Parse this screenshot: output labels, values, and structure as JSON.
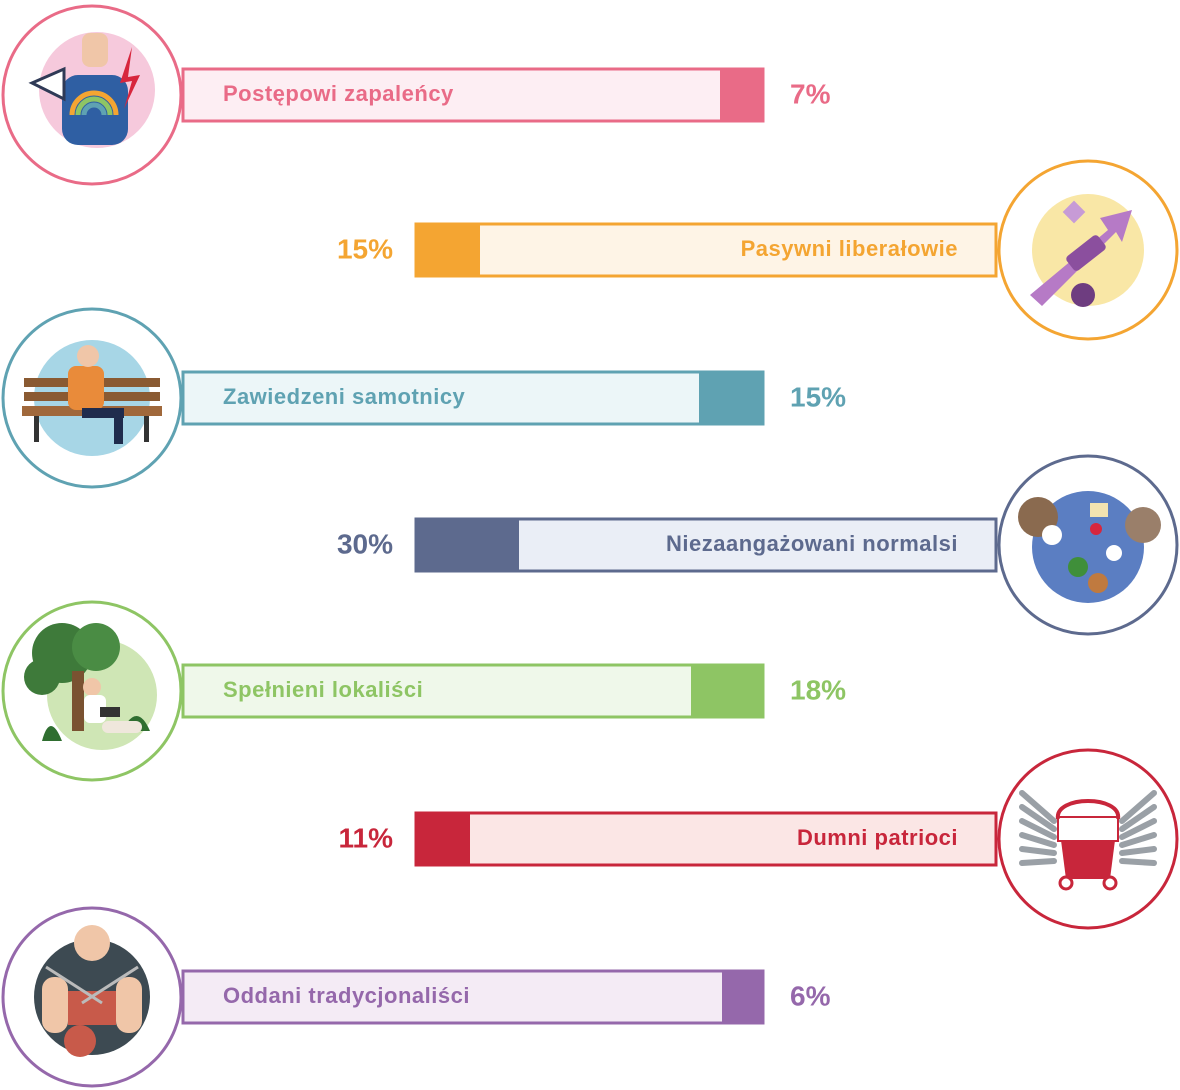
{
  "chart_data": {
    "type": "bar",
    "categories": [
      "Postępowi zapaleńcy",
      "Pasywni liberałowie",
      "Zawiedzeni samotnicy",
      "Niezaangażowani normalsi",
      "Spełnieni lokaliści",
      "Dumni patrioci",
      "Oddani tradycjonaliści"
    ],
    "values": [
      7,
      15,
      15,
      30,
      18,
      11,
      6
    ],
    "value_labels": [
      "7%",
      "15%",
      "15%",
      "30%",
      "18%",
      "11%",
      "6%"
    ],
    "unit": "%",
    "xlim": [
      0,
      100
    ],
    "grid": false,
    "legend": "none",
    "colors": [
      "#e96b87",
      "#f4a532",
      "#5fa2b2",
      "#5d6a8e",
      "#8ec564",
      "#c8263b",
      "#9568ab"
    ],
    "light_colors": [
      "#fdeef3",
      "#fef4e6",
      "#ecf6f8",
      "#eaeef6",
      "#eff8ea",
      "#fbe6e5",
      "#f4ebf5"
    ],
    "icons": [
      "protest-backpack-icon",
      "growth-arrow-icon",
      "park-bench-icon",
      "table-friends-icon",
      "tree-reading-icon",
      "winged-shield-icon",
      "knitting-icon"
    ]
  }
}
